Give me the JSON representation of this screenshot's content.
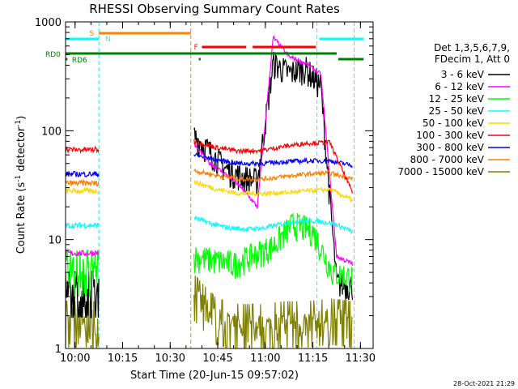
{
  "chart_data": {
    "type": "line",
    "title": "RHESSI Observing Summary Count Rates",
    "xlabel": "Start Time (20-Jun-15 09:57:02)",
    "ylabel_main": "Count Rate (s",
    "ylabel_sup": "-1",
    "ylabel_tail": " detector",
    "ylabel_sup2": "-1",
    "ylabel_close": ")",
    "yscale": "log",
    "ylim": [
      1,
      1000
    ],
    "xlim_minutes": [
      0,
      97
    ],
    "x_ticks": [
      {
        "label": "10:00",
        "m": 3
      },
      {
        "label": "10:15",
        "m": 18
      },
      {
        "label": "10:30",
        "m": 33
      },
      {
        "label": "10:45",
        "m": 48
      },
      {
        "label": "11:00",
        "m": 63
      },
      {
        "label": "11:15",
        "m": 78
      },
      {
        "label": "11:30",
        "m": 93
      }
    ],
    "y_ticks": [
      {
        "label": "1",
        "v": 1
      },
      {
        "label": "10",
        "v": 10
      },
      {
        "label": "100",
        "v": 100
      },
      {
        "label": "1000",
        "v": 1000
      }
    ],
    "legend_header": [
      "Det 1,3,5,6,7,9,",
      "FDecim 1, Att 0"
    ],
    "legend_position": "right",
    "series": [
      {
        "name": "3 - 6 keV",
        "color": "#000000"
      },
      {
        "name": "6 - 12 keV",
        "color": "#ff00ff"
      },
      {
        "name": "12 - 25 keV",
        "color": "#00ff00"
      },
      {
        "name": "25 - 50 keV",
        "color": "#00ffff"
      },
      {
        "name": "50 - 100 keV",
        "color": "#ffd700"
      },
      {
        "name": "100 - 300 keV",
        "color": "#ff0000"
      },
      {
        "name": "300 - 800 keV",
        "color": "#0000ff"
      },
      {
        "name": "800 - 7000 keV",
        "color": "#ff8000"
      },
      {
        "name": "7000 - 15000 keV",
        "color": "#808000"
      }
    ],
    "levels": {
      "3 - 6 keV": {
        "seg1": 3.2,
        "seg2": [
          90,
          65,
          45,
          38,
          35,
          420,
          340,
          380,
          260,
          4,
          3.8
        ]
      },
      "6 - 12 keV": {
        "seg1": 7.5,
        "seg2": [
          75,
          50,
          40,
          30,
          20,
          720,
          480,
          420,
          330,
          7,
          6
        ]
      },
      "12 - 25 keV": {
        "seg1": 5.0,
        "seg2": [
          7,
          6.5,
          6,
          7.2,
          8.8,
          14,
          12,
          5,
          4.5
        ]
      },
      "25 - 50 keV": {
        "seg1": 13.5,
        "seg2": [
          16,
          14,
          12.8,
          12.5,
          12.8,
          14,
          15,
          14.8,
          14,
          11.8
        ]
      },
      "50 - 100 keV": {
        "seg1": 28,
        "seg2": [
          34,
          29,
          26.5,
          26.5,
          27,
          28,
          29,
          23
        ]
      },
      "100 - 300 keV": {
        "seg1": 67,
        "seg2": [
          80,
          70,
          65,
          66,
          72,
          77,
          78,
          27
        ]
      },
      "300 - 800 keV": {
        "seg1": 40,
        "seg2": [
          60,
          54,
          50,
          50,
          52,
          53,
          53,
          48
        ]
      },
      "800 - 7000 keV": {
        "seg1": 33,
        "seg2": [
          43,
          39,
          36,
          36,
          38,
          40,
          41,
          36
        ]
      },
      "7000 - 15000 keV": {
        "seg1": 1.7,
        "seg2": [
          3.0,
          1.8,
          1.6,
          1.6,
          1.7,
          1.7,
          1.8,
          1.7
        ]
      }
    },
    "flags": [
      {
        "label": "S",
        "color": "#ff8000"
      },
      {
        "label": "N",
        "color": "#00ffff"
      },
      {
        "label": "F",
        "color": "#ff0000"
      },
      {
        "label": "RD0",
        "color": "#008000"
      },
      {
        "label": "RD6",
        "color": "#008000"
      }
    ],
    "timestamp": "28-Oct-2021 21:29"
  }
}
